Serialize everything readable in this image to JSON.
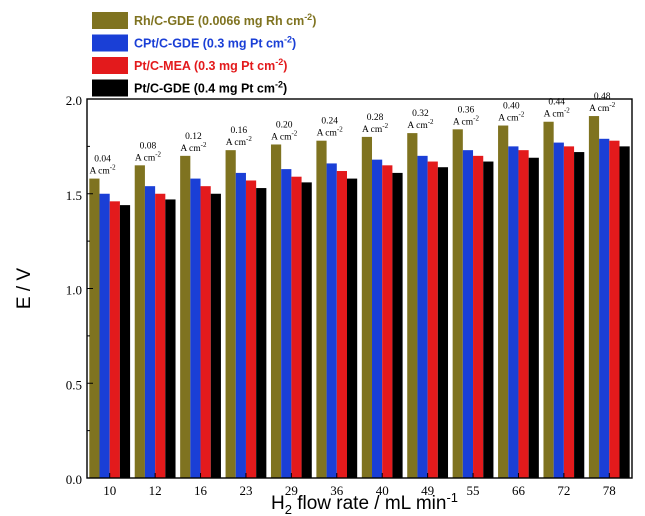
{
  "chart_data": {
    "type": "bar",
    "xlabel": {
      "pre": "H",
      "sub": "2",
      "post": " flow rate / mL min",
      "sup": "-1"
    },
    "ylabel": "E / V",
    "ylim": [
      0.0,
      2.0
    ],
    "yticks": [
      "0.0",
      "0.5",
      "1.0",
      "1.5",
      "2.0"
    ],
    "categories": [
      "10",
      "12",
      "16",
      "23",
      "29",
      "36",
      "40",
      "49",
      "55",
      "66",
      "72",
      "78"
    ],
    "series": [
      {
        "name": "Rh/C-GDE",
        "loading": " (0.0066 mg Rh cm",
        "sup": "-2",
        "close": ")",
        "color": "#7f7320",
        "values": [
          1.58,
          1.65,
          1.7,
          1.73,
          1.76,
          1.78,
          1.8,
          1.82,
          1.84,
          1.86,
          1.88,
          1.91
        ]
      },
      {
        "name": "CPt/C-GDE",
        "loading": " (0.3 mg Pt cm",
        "sup": "-2",
        "close": ")",
        "color": "#1a3fd6",
        "values": [
          1.5,
          1.54,
          1.58,
          1.61,
          1.63,
          1.66,
          1.68,
          1.7,
          1.73,
          1.75,
          1.77,
          1.79
        ]
      },
      {
        "name": "Pt/C-MEA",
        "loading": " (0.3 mg Pt cm",
        "sup": "-2",
        "close": ")",
        "color": "#e31a1c",
        "values": [
          1.46,
          1.5,
          1.54,
          1.57,
          1.59,
          1.62,
          1.65,
          1.67,
          1.7,
          1.73,
          1.75,
          1.78
        ]
      },
      {
        "name": "Pt/C-GDE",
        "loading": " (0.4 mg Pt cm",
        "sup": "-2",
        "close": ")",
        "color": "#000000",
        "values": [
          1.44,
          1.47,
          1.5,
          1.53,
          1.56,
          1.58,
          1.61,
          1.64,
          1.67,
          1.69,
          1.72,
          1.75
        ]
      }
    ],
    "annotations": [
      {
        "value": "0.04",
        "unit": "A cm",
        "sup": "-2"
      },
      {
        "value": "0.08",
        "unit": "A cm",
        "sup": "-2"
      },
      {
        "value": "0.12",
        "unit": "A cm",
        "sup": "-2"
      },
      {
        "value": "0.16",
        "unit": "A cm",
        "sup": "-2"
      },
      {
        "value": "0.20",
        "unit": "A cm",
        "sup": "-2"
      },
      {
        "value": "0.24",
        "unit": "A cm",
        "sup": "-2"
      },
      {
        "value": "0.28",
        "unit": "A cm",
        "sup": "-2"
      },
      {
        "value": "0.32",
        "unit": "A cm",
        "sup": "-2"
      },
      {
        "value": "0.36",
        "unit": "A cm",
        "sup": "-2"
      },
      {
        "value": "0.40",
        "unit": "A cm",
        "sup": "-2"
      },
      {
        "value": "0.44",
        "unit": "A cm",
        "sup": "-2"
      },
      {
        "value": "0.48",
        "unit": "A cm",
        "sup": "-2"
      }
    ],
    "legend_position": "top-left",
    "grid": false
  }
}
